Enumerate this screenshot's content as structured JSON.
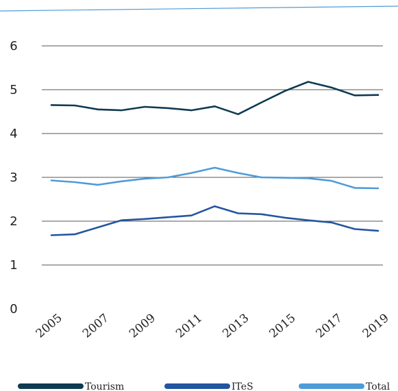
{
  "chart_data": {
    "type": "line",
    "title": "",
    "xlabel": "",
    "ylabel": "",
    "ylim": [
      0,
      6
    ],
    "yticks": [
      "0",
      "1",
      "2",
      "3",
      "4",
      "5",
      "6"
    ],
    "xticks": [
      "2005",
      "2007",
      "2009",
      "2011",
      "2013",
      "2015",
      "2017",
      "2019"
    ],
    "grid": "horizontal",
    "legend_position": "bottom",
    "x": [
      2005,
      2006,
      2007,
      2008,
      2009,
      2010,
      2011,
      2012,
      2013,
      2014,
      2015,
      2016,
      2017,
      2018,
      2019
    ],
    "series": [
      {
        "name": "Tourism",
        "color": "#0f3a52",
        "values": [
          4.65,
          4.64,
          4.55,
          4.53,
          4.61,
          4.58,
          4.53,
          4.62,
          4.44,
          4.71,
          4.97,
          5.18,
          5.05,
          4.87,
          4.88
        ]
      },
      {
        "name": "ITeS",
        "color": "#2355a0",
        "values": [
          1.68,
          1.7,
          1.86,
          2.02,
          2.05,
          2.09,
          2.13,
          2.34,
          2.18,
          2.16,
          2.08,
          2.02,
          1.97,
          1.82,
          1.78
        ]
      },
      {
        "name": "Total",
        "color": "#4f9bd8",
        "values": [
          2.93,
          2.89,
          2.83,
          2.91,
          2.97,
          3.0,
          3.1,
          3.22,
          3.1,
          3.0,
          2.99,
          2.98,
          2.92,
          2.76,
          2.75
        ]
      }
    ]
  }
}
